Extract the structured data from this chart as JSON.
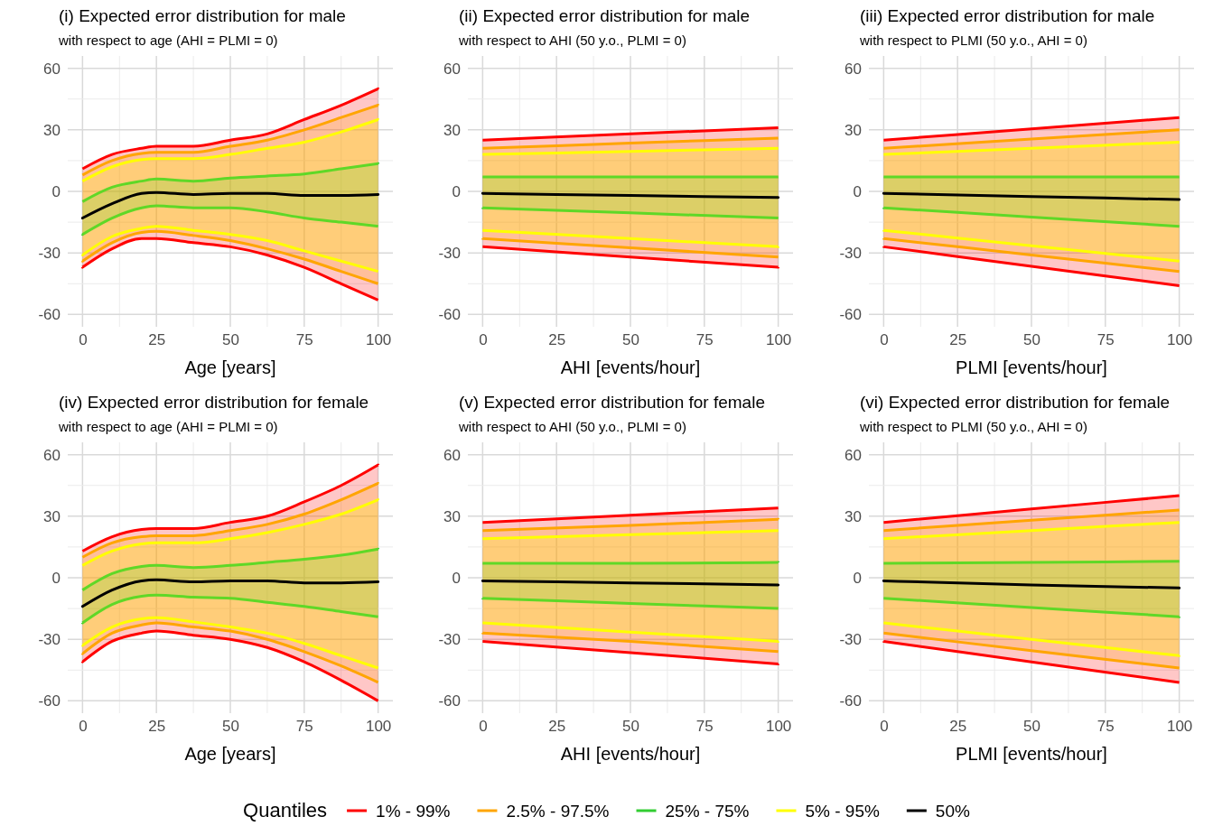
{
  "chart_data": [
    {
      "type": "line",
      "title": "(i) Expected error distribution for male",
      "subtitle": "with respect to age (AHI = PLMI = 0)",
      "xlabel": "Age [years]",
      "legend": "bottom",
      "legend_title": "Quantiles",
      "grid": true,
      "xlim": [
        -5,
        105
      ],
      "ylim": [
        -66,
        66
      ],
      "xticks": [
        0,
        25,
        50,
        75,
        100
      ],
      "yticks": [
        -60,
        -30,
        0,
        30,
        60
      ],
      "x": [
        0,
        10,
        20,
        25,
        37.5,
        50,
        62.5,
        75,
        87.5,
        100
      ],
      "series": [
        {
          "name": "1% - 99%",
          "color": "#ff0000",
          "values": [
            null,
            null,
            null,
            null,
            null,
            null,
            null,
            null,
            null,
            null
          ],
          "lower": [
            -37,
            -28,
            -23,
            -23,
            -25,
            -27,
            -31,
            -37,
            -45,
            -53
          ],
          "upper": [
            11,
            18,
            21,
            22,
            22,
            25,
            28,
            35,
            42,
            50
          ]
        },
        {
          "name": "2.5% - 97.5%",
          "color": "#ffa500",
          "values": [
            null,
            null,
            null,
            null,
            null,
            null,
            null,
            null,
            null,
            null
          ],
          "lower": [
            -34,
            -25,
            -20,
            -19.5,
            -21.5,
            -24,
            -28,
            -33,
            -39,
            -45
          ],
          "upper": [
            8,
            15,
            18.5,
            19,
            19,
            22,
            25,
            30,
            36,
            42
          ]
        },
        {
          "name": "25% - 75%",
          "color": "#32cd32",
          "values": [
            null,
            null,
            null,
            null,
            null,
            null,
            null,
            null,
            null,
            null
          ],
          "lower": [
            -21,
            -13,
            -8,
            -7,
            -8,
            -8,
            -10,
            -13,
            -15,
            -17
          ],
          "upper": [
            -5,
            2,
            5,
            6,
            5,
            6.5,
            7.5,
            8.5,
            11,
            13.5
          ]
        },
        {
          "name": "5% - 95%",
          "color": "#ffff00",
          "values": [
            null,
            null,
            null,
            null,
            null,
            null,
            null,
            null,
            null,
            null
          ],
          "lower": [
            -31,
            -22,
            -18,
            -17,
            -19,
            -21,
            -24,
            -29,
            -34,
            -39
          ],
          "upper": [
            5,
            12,
            15.5,
            16,
            16,
            18,
            21,
            24,
            29,
            35
          ]
        },
        {
          "name": "50%",
          "color": "#000000",
          "values": [
            -13,
            -6,
            -1,
            -0.5,
            -1.5,
            -1,
            -1,
            -2,
            -2,
            -1.5
          ]
        }
      ]
    },
    {
      "type": "line",
      "title": "(ii) Expected error distribution for male",
      "subtitle": "with respect to AHI (50 y.o., PLMI = 0)",
      "xlabel": "AHI [events/hour]",
      "grid": true,
      "xlim": [
        -5,
        105
      ],
      "ylim": [
        -66,
        66
      ],
      "xticks": [
        0,
        25,
        50,
        75,
        100
      ],
      "yticks": [
        -60,
        -30,
        0,
        30,
        60
      ],
      "x": [
        0,
        50,
        100
      ],
      "series": [
        {
          "color": "#ff0000",
          "values": [
            null,
            null,
            null
          ],
          "lower": [
            -27,
            -32,
            -37
          ],
          "upper": [
            25,
            28,
            31
          ]
        },
        {
          "color": "#ffa500",
          "values": [
            null,
            null,
            null
          ],
          "lower": [
            -23,
            -27.5,
            -32
          ],
          "upper": [
            21,
            23.5,
            26
          ]
        },
        {
          "color": "#32cd32",
          "values": [
            null,
            null,
            null
          ],
          "lower": [
            -8,
            -10.5,
            -13
          ],
          "upper": [
            7,
            7,
            7
          ]
        },
        {
          "color": "#ffff00",
          "values": [
            null,
            null,
            null
          ],
          "lower": [
            -19,
            -23,
            -27
          ],
          "upper": [
            18,
            19.5,
            21
          ]
        },
        {
          "color": "#000000",
          "values": [
            -1,
            -2,
            -3
          ]
        }
      ]
    },
    {
      "type": "line",
      "title": "(iii) Expected error distribution for male",
      "subtitle": "with respect to PLMI (50 y.o., AHI = 0)",
      "xlabel": "PLMI [events/hour]",
      "grid": true,
      "xlim": [
        -5,
        105
      ],
      "ylim": [
        -66,
        66
      ],
      "xticks": [
        0,
        25,
        50,
        75,
        100
      ],
      "yticks": [
        -60,
        -30,
        0,
        30,
        60
      ],
      "x": [
        0,
        50,
        100
      ],
      "series": [
        {
          "color": "#ff0000",
          "values": [
            null,
            null,
            null
          ],
          "lower": [
            -27,
            -36.5,
            -46
          ],
          "upper": [
            25,
            30.5,
            36
          ]
        },
        {
          "color": "#ffa500",
          "values": [
            null,
            null,
            null
          ],
          "lower": [
            -23,
            -31,
            -39
          ],
          "upper": [
            21,
            25.5,
            30
          ]
        },
        {
          "color": "#32cd32",
          "values": [
            null,
            null,
            null
          ],
          "lower": [
            -8,
            -12.5,
            -17
          ],
          "upper": [
            7,
            7,
            7
          ]
        },
        {
          "color": "#ffff00",
          "values": [
            null,
            null,
            null
          ],
          "lower": [
            -19,
            -26.5,
            -34
          ],
          "upper": [
            18,
            21,
            24
          ]
        },
        {
          "color": "#000000",
          "values": [
            -1,
            -2.5,
            -4
          ]
        }
      ]
    },
    {
      "type": "line",
      "title": "(iv) Expected error distribution for female",
      "subtitle": "with respect to age (AHI = PLMI = 0)",
      "xlabel": "Age [years]",
      "grid": true,
      "xlim": [
        -5,
        105
      ],
      "ylim": [
        -66,
        66
      ],
      "xticks": [
        0,
        25,
        50,
        75,
        100
      ],
      "yticks": [
        -60,
        -30,
        0,
        30,
        60
      ],
      "x": [
        0,
        10,
        20,
        25,
        37.5,
        50,
        62.5,
        75,
        87.5,
        100
      ],
      "series": [
        {
          "color": "#ff0000",
          "values": [
            null,
            null,
            null,
            null,
            null,
            null,
            null,
            null,
            null,
            null
          ],
          "lower": [
            -41,
            -31,
            -27,
            -26,
            -28,
            -30,
            -34,
            -41,
            -50,
            -60
          ],
          "upper": [
            13,
            20,
            23.5,
            24,
            24,
            27,
            30,
            37,
            45,
            55
          ]
        },
        {
          "color": "#ffa500",
          "values": [
            null,
            null,
            null,
            null,
            null,
            null,
            null,
            null,
            null,
            null
          ],
          "lower": [
            -37,
            -27,
            -23,
            -22,
            -24,
            -26,
            -30,
            -36,
            -43,
            -51
          ],
          "upper": [
            10,
            17,
            20,
            20.5,
            20.5,
            23,
            26,
            31,
            38,
            46
          ]
        },
        {
          "color": "#32cd32",
          "values": [
            null,
            null,
            null,
            null,
            null,
            null,
            null,
            null,
            null,
            null
          ],
          "lower": [
            -22,
            -13,
            -9,
            -8.5,
            -9.5,
            -10,
            -12,
            -14,
            -16.5,
            -19
          ],
          "upper": [
            -6,
            2,
            5.5,
            6,
            5,
            6,
            7.5,
            9,
            11,
            14
          ]
        },
        {
          "color": "#ffff00",
          "values": [
            null,
            null,
            null,
            null,
            null,
            null,
            null,
            null,
            null,
            null
          ],
          "lower": [
            -33,
            -24,
            -20,
            -19.5,
            -21.5,
            -24,
            -27,
            -32,
            -38,
            -44
          ],
          "upper": [
            6,
            13,
            16.5,
            17,
            17,
            19,
            22,
            26,
            31,
            38
          ]
        },
        {
          "color": "#000000",
          "values": [
            -14,
            -6,
            -1.5,
            -1,
            -2,
            -1.5,
            -1.5,
            -2.5,
            -2.5,
            -2
          ]
        }
      ]
    },
    {
      "type": "line",
      "title": "(v) Expected error distribution for female",
      "subtitle": "with respect to AHI (50 y.o., PLMI = 0)",
      "xlabel": "AHI [events/hour]",
      "grid": true,
      "xlim": [
        -5,
        105
      ],
      "ylim": [
        -66,
        66
      ],
      "xticks": [
        0,
        25,
        50,
        75,
        100
      ],
      "yticks": [
        -60,
        -30,
        0,
        30,
        60
      ],
      "x": [
        0,
        50,
        100
      ],
      "series": [
        {
          "color": "#ff0000",
          "values": [
            null,
            null,
            null
          ],
          "lower": [
            -31,
            -36.5,
            -42
          ],
          "upper": [
            27,
            30.5,
            34
          ]
        },
        {
          "color": "#ffa500",
          "values": [
            null,
            null,
            null
          ],
          "lower": [
            -27,
            -31,
            -36
          ],
          "upper": [
            23,
            25.5,
            28.5
          ]
        },
        {
          "color": "#32cd32",
          "values": [
            null,
            null,
            null
          ],
          "lower": [
            -10,
            -12.5,
            -15
          ],
          "upper": [
            7,
            7,
            7.5
          ]
        },
        {
          "color": "#ffff00",
          "values": [
            null,
            null,
            null
          ],
          "lower": [
            -22,
            -26.5,
            -31
          ],
          "upper": [
            19,
            21,
            23
          ]
        },
        {
          "color": "#000000",
          "values": [
            -1.5,
            -2.5,
            -3.5
          ]
        }
      ]
    },
    {
      "type": "line",
      "title": "(vi) Expected error distribution for female",
      "subtitle": "with respect to PLMI (50 y.o., AHI = 0)",
      "xlabel": "PLMI [events/hour]",
      "grid": true,
      "xlim": [
        -5,
        105
      ],
      "ylim": [
        -66,
        66
      ],
      "xticks": [
        0,
        25,
        50,
        75,
        100
      ],
      "yticks": [
        -60,
        -30,
        0,
        30,
        60
      ],
      "x": [
        0,
        50,
        100
      ],
      "series": [
        {
          "color": "#ff0000",
          "values": [
            null,
            null,
            null
          ],
          "lower": [
            -31,
            -41,
            -51
          ],
          "upper": [
            27,
            33.5,
            40
          ]
        },
        {
          "color": "#ffa500",
          "values": [
            null,
            null,
            null
          ],
          "lower": [
            -27,
            -35.5,
            -44
          ],
          "upper": [
            23,
            28,
            33
          ]
        },
        {
          "color": "#32cd32",
          "values": [
            null,
            null,
            null
          ],
          "lower": [
            -10,
            -14.5,
            -19
          ],
          "upper": [
            7,
            7.5,
            8
          ]
        },
        {
          "color": "#ffff00",
          "values": [
            null,
            null,
            null
          ],
          "lower": [
            -22,
            -30,
            -38
          ],
          "upper": [
            19,
            23,
            27
          ]
        },
        {
          "color": "#000000",
          "values": [
            -1.5,
            -3.5,
            -5
          ]
        }
      ]
    }
  ]
}
